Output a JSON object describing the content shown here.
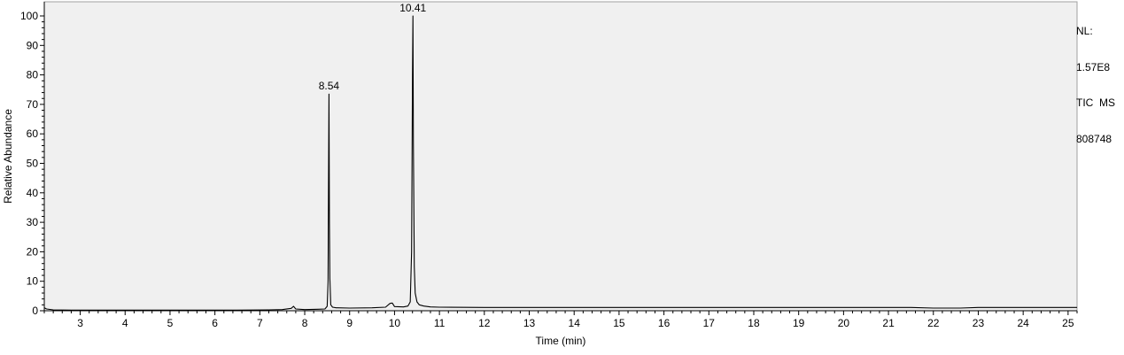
{
  "chart_data": {
    "type": "line",
    "title": "",
    "xlabel": "Time (min)",
    "ylabel": "Relative Abundance",
    "xlim": [
      2.2,
      25.2
    ],
    "ylim": [
      0,
      100
    ],
    "x_ticks": [
      3,
      4,
      5,
      6,
      7,
      8,
      9,
      10,
      11,
      12,
      13,
      14,
      15,
      16,
      17,
      18,
      19,
      20,
      21,
      22,
      23,
      24,
      25
    ],
    "y_ticks": [
      0,
      10,
      20,
      30,
      40,
      50,
      60,
      70,
      80,
      90,
      100
    ],
    "grid": false,
    "background": "#f0f0f0",
    "line_color": "#000000",
    "series": [
      {
        "x": [
          2.2,
          2.25,
          2.4,
          2.8,
          3.5,
          4.5,
          5.5,
          6.5,
          7.2,
          7.5,
          7.7,
          7.75,
          7.8,
          8.0,
          8.3,
          8.45,
          8.5,
          8.52,
          8.53,
          8.54,
          8.55,
          8.56,
          8.58,
          8.62,
          8.7,
          9.0,
          9.5,
          9.8,
          9.9,
          9.95,
          10.0,
          10.2,
          10.3,
          10.35,
          10.38,
          10.4,
          10.41,
          10.42,
          10.44,
          10.46,
          10.5,
          10.55,
          10.65,
          10.8,
          11.0,
          12.0,
          14.0,
          16.0,
          18.0,
          20.0,
          21.5,
          22.0,
          22.6,
          23.0,
          24.0,
          25.0,
          25.2
        ],
        "y": [
          1.0,
          0.6,
          0.3,
          0.2,
          0.2,
          0.2,
          0.2,
          0.2,
          0.3,
          0.4,
          0.8,
          1.5,
          0.6,
          0.4,
          0.5,
          0.6,
          1.5,
          10,
          43,
          73.5,
          30,
          11,
          2.0,
          1.2,
          1.0,
          0.9,
          1.0,
          1.2,
          2.5,
          2.6,
          1.4,
          1.3,
          1.6,
          3,
          20,
          80,
          100,
          57,
          15,
          6,
          3,
          2.0,
          1.6,
          1.3,
          1.2,
          1.1,
          1.1,
          1.1,
          1.1,
          1.1,
          1.1,
          0.9,
          0.9,
          1.1,
          1.1,
          1.1,
          1.1
        ]
      }
    ],
    "annotations": [
      {
        "x": 8.54,
        "y": 73.5,
        "text": "8.54"
      },
      {
        "x": 10.41,
        "y": 100,
        "text": "10.41"
      }
    ]
  },
  "info": {
    "nl_label": "NL:",
    "nl_value": "1.57E8",
    "scan_filter": "TIC  MS",
    "sample_id": "808748"
  }
}
